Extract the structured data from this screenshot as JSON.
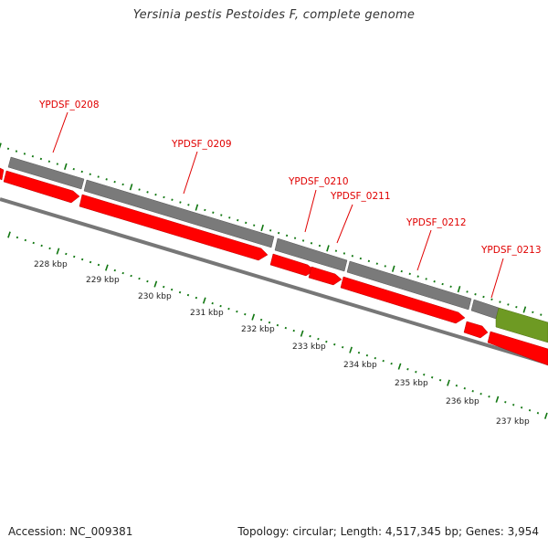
{
  "title": "Yersinia pestis Pestoides F, complete genome",
  "footer": {
    "accession": "Accession: NC_009381",
    "summary": "Topology: circular; Length: 4,517,345 bp; Genes: 3,954"
  },
  "colors": {
    "gene": "#7a7a7a",
    "cds": "#ff0000",
    "other_feature": "#6e9a23",
    "backbone": "#888888",
    "label": "#e00000",
    "ticks": "#117711"
  },
  "gene_labels": [
    "YPDSF_0208",
    "YPDSF_0209",
    "YPDSF_0210",
    "YPDSF_0211",
    "YPDSF_0212",
    "YPDSF_0213"
  ],
  "kbp_labels": [
    "228 kbp",
    "229 kbp",
    "230 kbp",
    "231 kbp",
    "232 kbp",
    "233 kbp",
    "234 kbp",
    "235 kbp",
    "236 kbp",
    "237 kbp"
  ]
}
